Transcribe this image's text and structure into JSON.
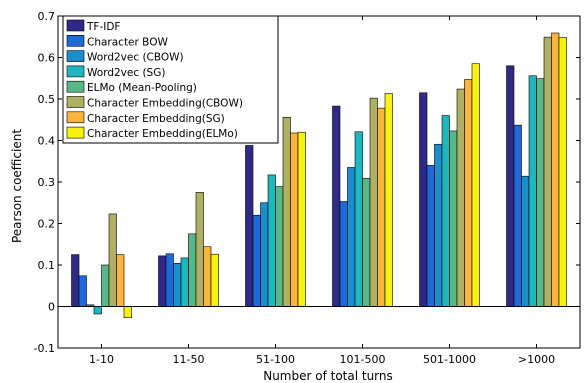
{
  "chart_data": {
    "type": "bar",
    "title": "",
    "xlabel": "Number of total turns",
    "ylabel": "Pearson coefficient",
    "ylim": [
      -0.1,
      0.7
    ],
    "yticks": [
      -0.1,
      0,
      0.1,
      0.2,
      0.3,
      0.4,
      0.5,
      0.6,
      0.7
    ],
    "ytick_labels": [
      "-0.1",
      "0",
      "0.1",
      "0.2",
      "0.3",
      "0.4",
      "0.5",
      "0.6",
      "0.7"
    ],
    "categories": [
      "1-10",
      "11-50",
      "51-100",
      "101-500",
      "501-1000",
      ">1000"
    ],
    "grid": false,
    "legend_position": "top-left",
    "series": [
      {
        "name": "TF-IDF",
        "color": "#2e2a86",
        "values": [
          0.125,
          0.122,
          0.388,
          0.483,
          0.515,
          0.58
        ]
      },
      {
        "name": "Character BOW",
        "color": "#1e6ad8",
        "values": [
          0.074,
          0.127,
          0.22,
          0.253,
          0.34,
          0.437
        ]
      },
      {
        "name": "Word2vec (CBOW)",
        "color": "#1b8ecb",
        "values": [
          0.004,
          0.104,
          0.25,
          0.335,
          0.391,
          0.314
        ]
      },
      {
        "name": "Word2vec (SG)",
        "color": "#1fb7bf",
        "values": [
          -0.018,
          0.117,
          0.317,
          0.421,
          0.46,
          0.556
        ]
      },
      {
        "name": "ELMo (Mean-Pooling)",
        "color": "#5ab888",
        "values": [
          0.1,
          0.175,
          0.289,
          0.309,
          0.423,
          0.549
        ]
      },
      {
        "name": "Character Embedding(CBOW)",
        "color": "#b0b062",
        "values": [
          0.223,
          0.275,
          0.456,
          0.502,
          0.524,
          0.649
        ]
      },
      {
        "name": "Character Embedding(SG)",
        "color": "#fbb43c",
        "values": [
          0.125,
          0.144,
          0.418,
          0.478,
          0.547,
          0.659
        ]
      },
      {
        "name": "Character Embedding(ELMo)",
        "color": "#f8f210",
        "values": [
          -0.027,
          0.126,
          0.42,
          0.513,
          0.585,
          0.648
        ]
      }
    ]
  }
}
